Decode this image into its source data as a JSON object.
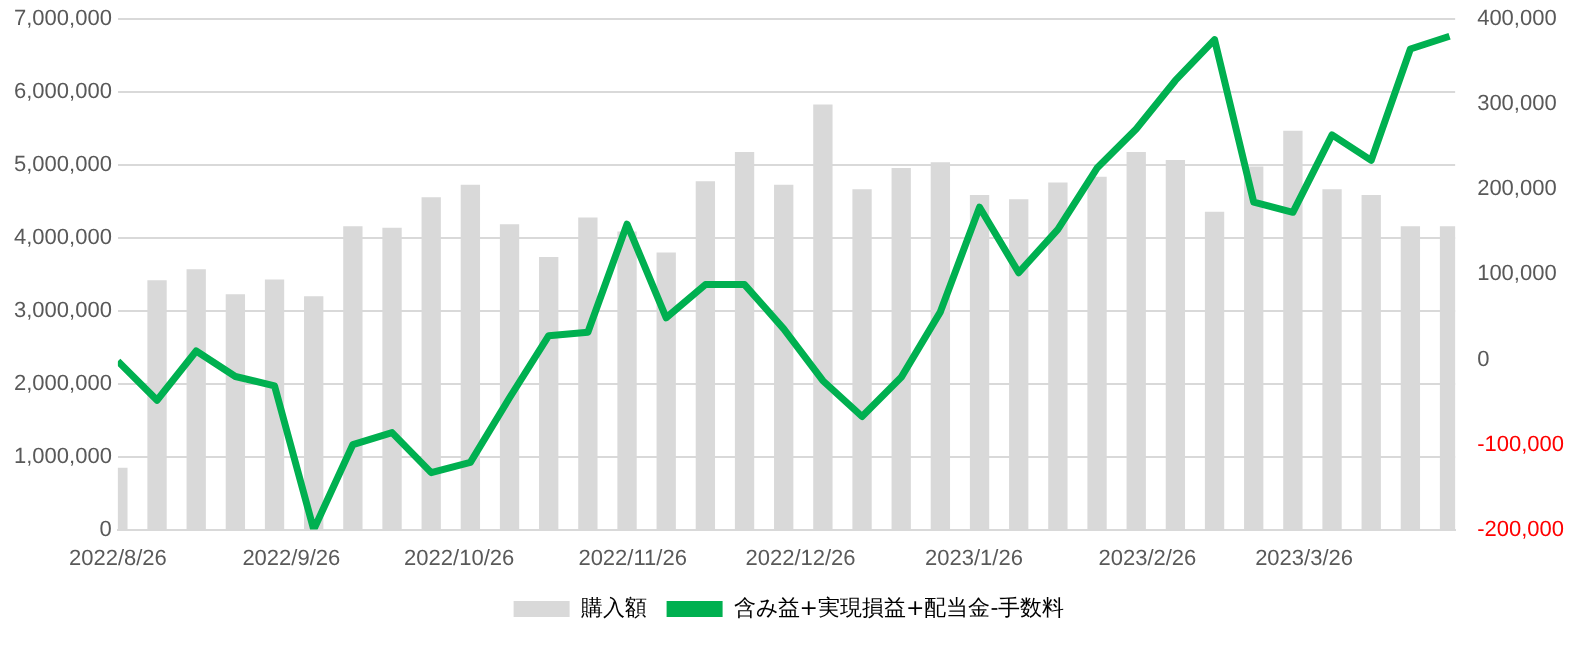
{
  "chart_data": {
    "type": "bar",
    "x": [
      "2022-08-26",
      "2022-09-02",
      "2022-09-09",
      "2022-09-16",
      "2022-09-23",
      "2022-09-30",
      "2022-10-07",
      "2022-10-14",
      "2022-10-21",
      "2022-10-28",
      "2022-11-04",
      "2022-11-11",
      "2022-11-18",
      "2022-11-25",
      "2022-12-02",
      "2022-12-09",
      "2022-12-16",
      "2022-12-23",
      "2022-12-30",
      "2023-01-06",
      "2023-01-13",
      "2023-01-20",
      "2023-01-27",
      "2023-02-03",
      "2023-02-10",
      "2023-02-17",
      "2023-02-24",
      "2023-03-03",
      "2023-03-10",
      "2023-03-17",
      "2023-03-24",
      "2023-03-31",
      "2023-04-07",
      "2023-04-14",
      "2023-04-21"
    ],
    "series": [
      {
        "name": "購入額",
        "color": "#d9d9d9",
        "values": [
          840000,
          3410000,
          3560000,
          3220000,
          3420000,
          3190000,
          4150000,
          4130000,
          4550000,
          4720000,
          4180000,
          3730000,
          4270000,
          4080000,
          3790000,
          4770000,
          5170000,
          4720000,
          5820000,
          4660000,
          4950000,
          5030000,
          4580000,
          4520000,
          4750000,
          4830000,
          5170000,
          5060000,
          4350000,
          4970000,
          5460000,
          4660000,
          4580000,
          4150000,
          4150000
        ]
      },
      {
        "name": "含み益+実現損益+配当金-手数料",
        "type": "line",
        "axis": "y2",
        "color": "#00b050",
        "values": [
          -2000,
          -48000,
          10000,
          -20000,
          -31000,
          -200000,
          -100000,
          -86000,
          -133000,
          -121000,
          -45000,
          28000,
          32000,
          159000,
          49000,
          88000,
          88000,
          36000,
          -25000,
          -67000,
          -21000,
          56000,
          179000,
          102000,
          153000,
          225000,
          271000,
          328000,
          376000,
          185000,
          173000,
          264000,
          234000,
          365000,
          380000
        ]
      }
    ],
    "xlim": [
      "2022-08-26",
      "2023-04-22"
    ],
    "xticks": [
      {
        "value": "2022-08-26",
        "label": "2022/8/26"
      },
      {
        "value": "2022-09-26",
        "label": "2022/9/26"
      },
      {
        "value": "2022-10-26",
        "label": "2022/10/26"
      },
      {
        "value": "2022-11-26",
        "label": "2022/11/26"
      },
      {
        "value": "2022-12-26",
        "label": "2022/12/26"
      },
      {
        "value": "2023-01-26",
        "label": "2023/1/26"
      },
      {
        "value": "2023-02-26",
        "label": "2023/2/26"
      },
      {
        "value": "2023-03-26",
        "label": "2023/3/26"
      }
    ],
    "ylim": [
      0,
      7000000
    ],
    "yticks": [
      {
        "value": 0,
        "label": "0"
      },
      {
        "value": 1000000,
        "label": "1,000,000"
      },
      {
        "value": 2000000,
        "label": "2,000,000"
      },
      {
        "value": 3000000,
        "label": "3,000,000"
      },
      {
        "value": 4000000,
        "label": "4,000,000"
      },
      {
        "value": 5000000,
        "label": "5,000,000"
      },
      {
        "value": 6000000,
        "label": "6,000,000"
      },
      {
        "value": 7000000,
        "label": "7,000,000"
      }
    ],
    "y2lim": [
      -200000,
      400000
    ],
    "y2ticks": [
      {
        "value": -200000,
        "label": "-200,000"
      },
      {
        "value": -100000,
        "label": "-100,000"
      },
      {
        "value": 0,
        "label": "0"
      },
      {
        "value": 100000,
        "label": "100,000"
      },
      {
        "value": 200000,
        "label": "200,000"
      },
      {
        "value": 300000,
        "label": "300,000"
      },
      {
        "value": 400000,
        "label": "400,000"
      }
    ],
    "grid": "y",
    "legend": "bottom",
    "marker": "none",
    "line_style": "solid"
  }
}
